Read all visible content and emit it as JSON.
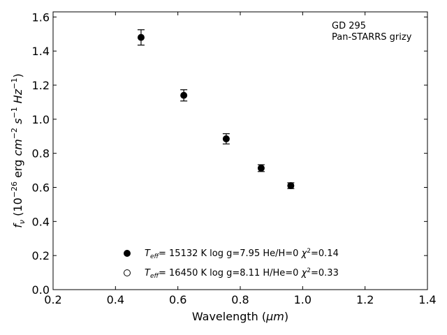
{
  "chart_data": {
    "type": "scatter",
    "xlabel_text": "Wavelength (",
    "xlabel_unit": "μm",
    "xlabel_close": ")",
    "ylabel": {
      "f": "f",
      "nu": "ν",
      "open": " (10",
      "exp26": "−26",
      "erg": " erg ",
      "cm": "cm",
      "cmexp": "−2",
      "s": "s",
      "sexp": "−1",
      "hz": "Hz",
      "hzexp": "−1",
      "close": ")"
    },
    "xlim": [
      0.2,
      1.4
    ],
    "ylim": [
      0.0,
      1.63
    ],
    "xticks": [
      0.2,
      0.4,
      0.6,
      0.8,
      1.0,
      1.2,
      1.4
    ],
    "xtick_labels": [
      "0.2",
      "0.4",
      "0.6",
      "0.8",
      "1.0",
      "1.2",
      "1.4"
    ],
    "yticks": [
      0.0,
      0.2,
      0.4,
      0.6,
      0.8,
      1.0,
      1.2,
      1.4,
      1.6
    ],
    "ytick_labels": [
      "0.0",
      "0.2",
      "0.4",
      "0.6",
      "0.8",
      "1.0",
      "1.2",
      "1.4",
      "1.6"
    ],
    "annotation": [
      "GD 295",
      "Pan-STARRS grizy"
    ],
    "series": [
      {
        "name": "Teff= 15132 K log g=7.95 He/H=0 χ2=0.14",
        "marker": "filled",
        "points": [
          {
            "x": 0.482,
            "y": 1.48,
            "err": 0.045
          },
          {
            "x": 0.619,
            "y": 1.14,
            "err": 0.033
          },
          {
            "x": 0.755,
            "y": 0.885,
            "err": 0.03
          },
          {
            "x": 0.867,
            "y": 0.713,
            "err": 0.02
          },
          {
            "x": 0.962,
            "y": 0.61,
            "err": 0.017
          }
        ]
      },
      {
        "name": "Teff= 16450 K log g=8.11 H/He=0 χ2=0.33",
        "marker": "open",
        "points": []
      }
    ],
    "legend": [
      {
        "marker": "filled",
        "T": "T",
        "eff": "eff",
        "rest": "= 15132 K  log g=7.95  He/H=0  ",
        "chi": "χ",
        "chiexp": "2",
        "chival": "=0.14"
      },
      {
        "marker": "open",
        "T": "T",
        "eff": "eff",
        "rest": "= 16450 K  log g=8.11  H/He=0  ",
        "chi": "χ",
        "chiexp": "2",
        "chival": "=0.33"
      }
    ],
    "legend_position": "lower-center",
    "grid": false
  }
}
